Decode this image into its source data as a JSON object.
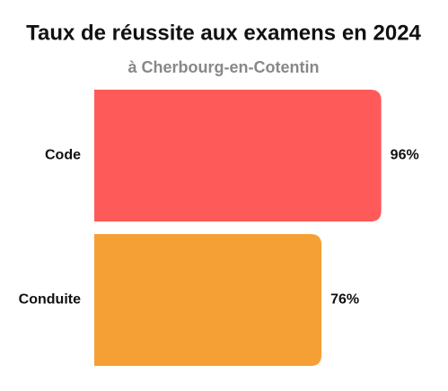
{
  "chart_data": {
    "type": "bar",
    "orientation": "horizontal",
    "title": "Taux de réussite aux examens en 2024",
    "subtitle": "à Cherbourg-en-Cotentin",
    "categories": [
      "Code",
      "Conduite"
    ],
    "values": [
      96,
      76
    ],
    "value_labels": [
      "96%",
      "76%"
    ],
    "colors": [
      "#ff5a5a",
      "#f5a035"
    ],
    "xlim": [
      0,
      100
    ]
  }
}
